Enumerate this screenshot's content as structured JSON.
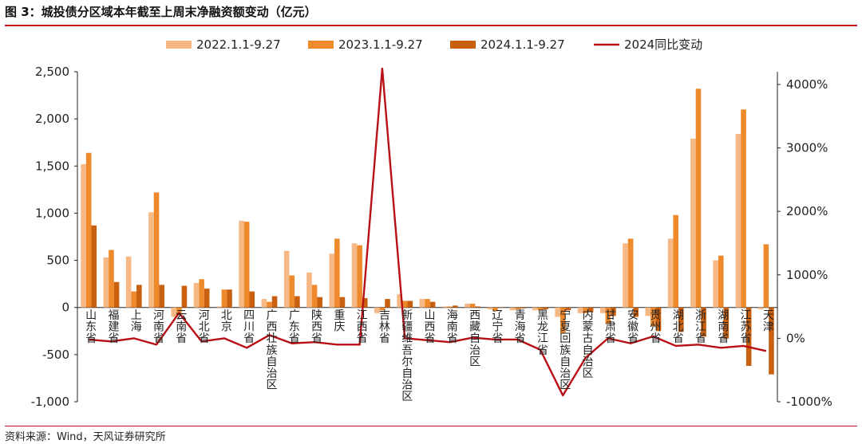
{
  "title": "图 3：城投债分区域本年截至上周末净融资额变动（亿元）",
  "source": "资料来源：Wind，天风证券研究所",
  "colors": {
    "s2022": "#f6b885",
    "s2023": "#ef8a2c",
    "s2024": "#c8600f",
    "line": "#b80f14",
    "rule": "#c0141a"
  },
  "chart_data": {
    "type": "bar",
    "categories": [
      "山东省",
      "福建省",
      "上海",
      "河南省",
      "云南省",
      "河北省",
      "北京",
      "四川省",
      "广西壮族自治区",
      "广东省",
      "陕西省",
      "重庆",
      "江西省",
      "吉林省",
      "新疆维吾尔自治区",
      "山西省",
      "海南省",
      "西藏自治区",
      "辽宁省",
      "青海省",
      "黑龙江省",
      "宁夏回族自治区",
      "内蒙古自治区",
      "甘肃省",
      "安徽省",
      "贵州省",
      "湖北省",
      "浙江省",
      "湖南省",
      "江苏省",
      "天津"
    ],
    "series": [
      {
        "name": "2022.1.1-9.27",
        "axis": "left",
        "color": "#f6b885",
        "values": [
          1520,
          530,
          540,
          1010,
          -100,
          260,
          10,
          920,
          90,
          600,
          370,
          570,
          680,
          -60,
          140,
          90,
          10,
          40,
          -20,
          -30,
          -30,
          -100,
          -60,
          -60,
          680,
          -90,
          730,
          1790,
          500,
          1840,
          -20
        ]
      },
      {
        "name": "2023.1.1-9.27",
        "axis": "left",
        "color": "#ef8a2c",
        "values": [
          1640,
          610,
          170,
          1220,
          -80,
          300,
          190,
          910,
          60,
          340,
          240,
          730,
          660,
          -30,
          70,
          90,
          10,
          40,
          -40,
          -20,
          -30,
          -270,
          -60,
          -170,
          730,
          -200,
          980,
          2320,
          550,
          2100,
          670
        ]
      },
      {
        "name": "2024.1.1-9.27",
        "axis": "left",
        "color": "#c8600f",
        "values": [
          870,
          270,
          240,
          240,
          230,
          200,
          190,
          170,
          120,
          120,
          110,
          110,
          100,
          90,
          70,
          60,
          20,
          10,
          0,
          -10,
          -20,
          -30,
          -50,
          -90,
          -100,
          -250,
          -260,
          -310,
          -330,
          -620,
          -710
        ]
      },
      {
        "name": "2024同比变动",
        "axis": "right",
        "type": "line",
        "color": "#b80f14",
        "values": [
          -20,
          -50,
          0,
          -100,
          400,
          -50,
          0,
          -150,
          50,
          -80,
          -60,
          -100,
          -100,
          4250,
          0,
          -30,
          -60,
          10,
          -20,
          -20,
          -180,
          -900,
          -310,
          0,
          -80,
          30,
          -120,
          -100,
          -150,
          -120,
          -200
        ]
      }
    ],
    "left_axis": {
      "min": -1000,
      "max": 2500,
      "ticks": [
        -1000,
        -500,
        0,
        500,
        1000,
        1500,
        2000,
        2500
      ],
      "tick_labels": [
        "-1,000",
        "-500",
        "0",
        "500",
        "1,000",
        "1,500",
        "2,000",
        "2,500"
      ]
    },
    "right_axis": {
      "min": -1000,
      "max": 4200,
      "ticks": [
        -1000,
        0,
        1000,
        2000,
        3000,
        4000
      ],
      "tick_labels": [
        "-1000%",
        "0%",
        "1000%",
        "2000%",
        "3000%",
        "4000%"
      ]
    },
    "legend_position": "top",
    "grid": false
  }
}
